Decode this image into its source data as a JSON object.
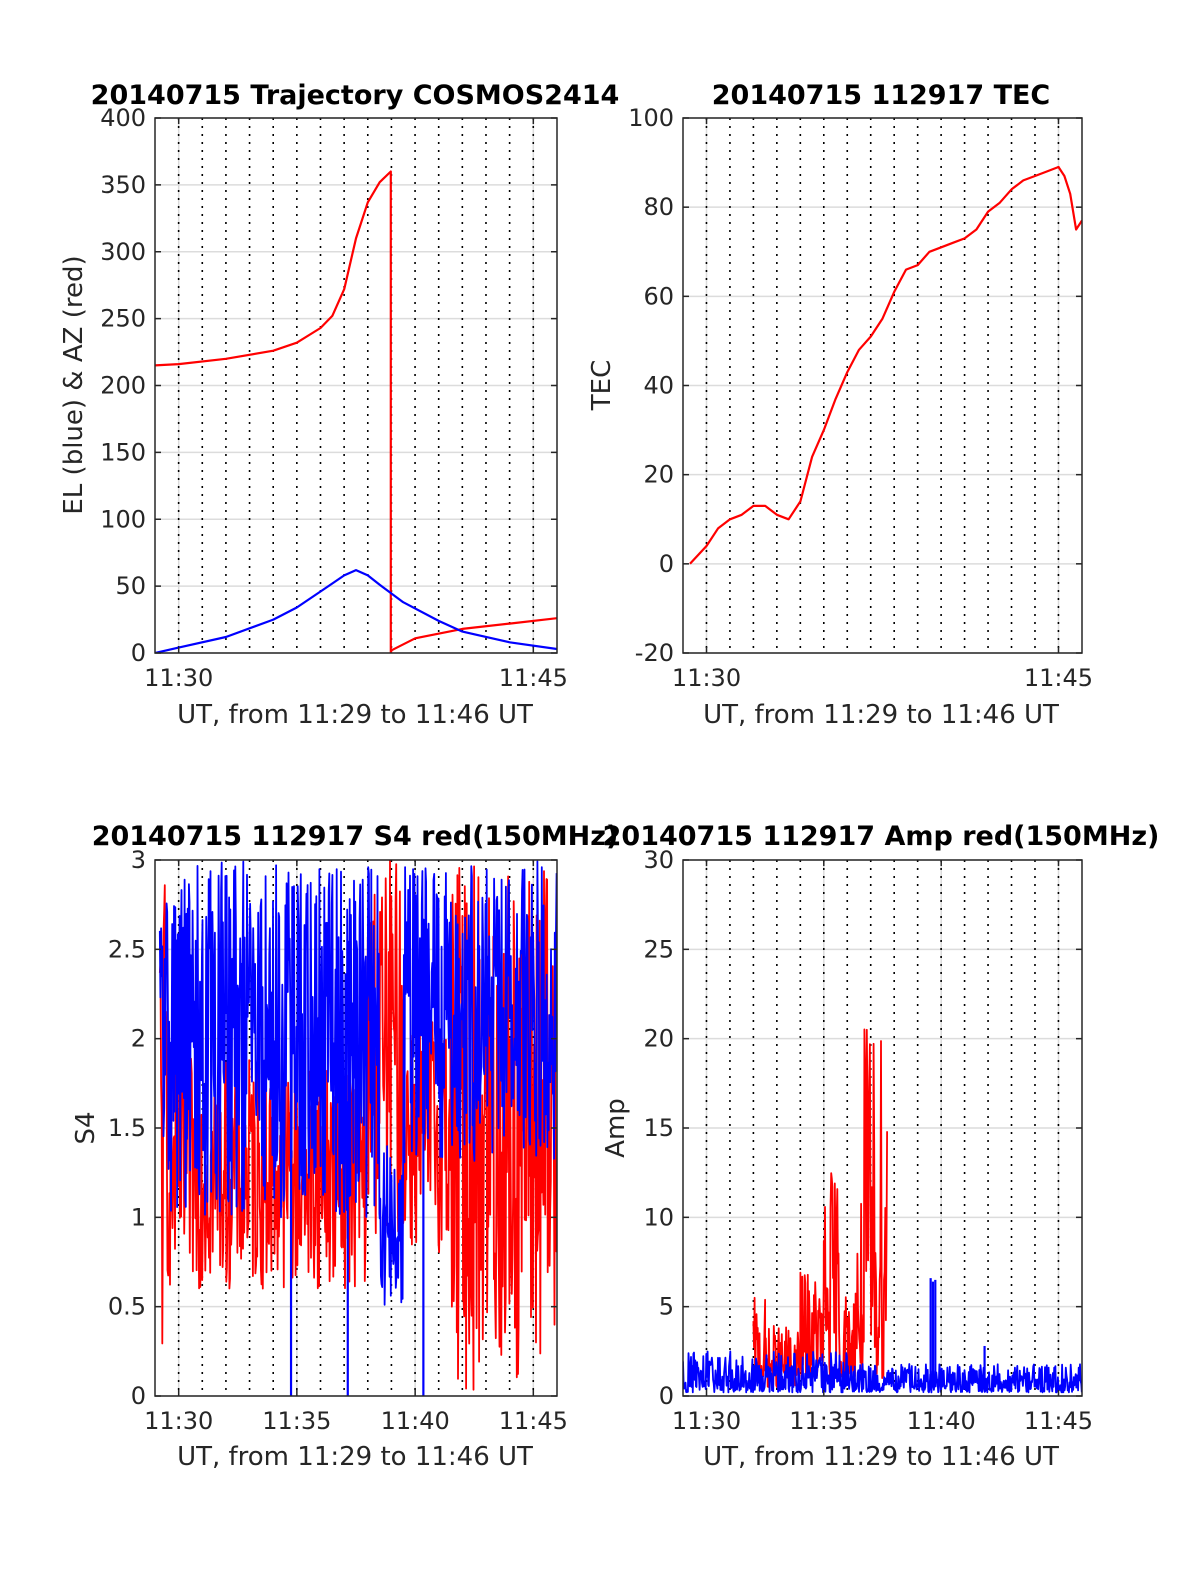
{
  "chart_data": [
    {
      "id": "traj",
      "type": "line",
      "title": "20140715 Trajectory COSMOS2414",
      "xlabel": "UT, from 11:29 to 11:46 UT",
      "ylabel": "EL (blue) & AZ (red)",
      "xlim": [
        11.4833,
        11.7667
      ],
      "ylim": [
        0,
        400
      ],
      "yticks": [
        0,
        50,
        100,
        150,
        200,
        250,
        300,
        350,
        400
      ],
      "xticks": [
        {
          "x": 11.5,
          "label": "11:30"
        },
        {
          "x": 11.75,
          "label": "11:45"
        }
      ],
      "minor_x_every_min": 1,
      "series": [
        {
          "color": "#ff0000",
          "x": [
            11.4833,
            11.5,
            11.5333,
            11.5667,
            11.5833,
            11.6,
            11.6083,
            11.6167,
            11.625,
            11.6333,
            11.6417,
            11.6495,
            11.6495,
            11.65,
            11.6667,
            11.7,
            11.7333,
            11.7667
          ],
          "y": [
            215,
            216,
            220,
            226,
            232,
            243,
            252,
            272,
            310,
            337,
            352,
            360,
            0,
            2,
            11,
            18,
            22,
            26
          ]
        },
        {
          "color": "#0000ff",
          "x": [
            11.4833,
            11.5,
            11.5333,
            11.5667,
            11.5833,
            11.6,
            11.6083,
            11.6167,
            11.625,
            11.6333,
            11.6417,
            11.6583,
            11.6833,
            11.7,
            11.7333,
            11.7667
          ],
          "y": [
            0,
            4,
            12,
            25,
            34,
            46,
            52,
            58,
            62,
            58,
            51,
            38,
            24,
            16,
            8,
            3
          ]
        }
      ]
    },
    {
      "id": "tec",
      "type": "line",
      "title": "20140715 112917 TEC",
      "xlabel": "UT, from 11:29 to 11:46 UT",
      "ylabel": "TEC",
      "xlim": [
        11.4833,
        11.7667
      ],
      "ylim": [
        -20,
        100
      ],
      "yticks": [
        -20,
        0,
        20,
        40,
        60,
        80,
        100
      ],
      "xticks": [
        {
          "x": 11.5,
          "label": "11:30"
        },
        {
          "x": 11.75,
          "label": "11:45"
        }
      ],
      "minor_x_every_min": 1,
      "series": [
        {
          "color": "#ff0000",
          "x": [
            11.4883,
            11.5,
            11.5083,
            11.5167,
            11.525,
            11.5333,
            11.5417,
            11.55,
            11.5583,
            11.5667,
            11.575,
            11.5833,
            11.5917,
            11.6,
            11.6083,
            11.6167,
            11.625,
            11.6333,
            11.6417,
            11.65,
            11.6583,
            11.6667,
            11.675,
            11.6833,
            11.6917,
            11.7,
            11.7083,
            11.7167,
            11.725,
            11.7333,
            11.7417,
            11.75,
            11.7542,
            11.7583,
            11.7625,
            11.7667
          ],
          "y": [
            0,
            4,
            8,
            10,
            11,
            13,
            13,
            11,
            10,
            14,
            24,
            30,
            37,
            43,
            48,
            51,
            55,
            61,
            66,
            67,
            70,
            71,
            72,
            73,
            75,
            79,
            81,
            84,
            86,
            87,
            88,
            89,
            87,
            83,
            75,
            77
          ]
        }
      ]
    },
    {
      "id": "s4",
      "type": "line",
      "title": "20140715 112917 S4 red(150MHz)",
      "xlabel": "UT, from 11:29 to 11:46 UT",
      "ylabel": "S4",
      "xlim": [
        11.4833,
        11.7667
      ],
      "ylim": [
        0,
        3
      ],
      "yticks": [
        0,
        0.5,
        1,
        1.5,
        2,
        2.5,
        3
      ],
      "xticks": [
        {
          "x": 11.5,
          "label": "11:30"
        },
        {
          "x": 11.5833,
          "label": "11:35"
        },
        {
          "x": 11.6667,
          "label": "11:40"
        },
        {
          "x": 11.75,
          "label": "11:45"
        }
      ],
      "minor_x_every_min": 1,
      "noise_series": [
        {
          "color": "#ff0000",
          "segments": [
            {
              "x0": 11.4867,
              "x1": 11.4917,
              "lo": 0,
              "hi": 3
            },
            {
              "x0": 11.4917,
              "x1": 11.6333,
              "lo": 0.6,
              "hi": 1.9
            },
            {
              "x0": 11.6333,
              "x1": 11.6583,
              "lo": 0.9,
              "hi": 3
            },
            {
              "x0": 11.6583,
              "x1": 11.6917,
              "lo": 0.8,
              "hi": 2.2
            },
            {
              "x0": 11.6917,
              "x1": 11.7667,
              "lo": 0,
              "hi": 3
            }
          ]
        },
        {
          "color": "#0000ff",
          "segments": [
            {
              "x0": 11.4867,
              "x1": 11.6417,
              "lo": 1.0,
              "hi": 3
            },
            {
              "x0": 11.6417,
              "x1": 11.6583,
              "lo": 0.5,
              "hi": 1.4
            },
            {
              "x0": 11.6583,
              "x1": 11.7667,
              "lo": 1.3,
              "hi": 3
            }
          ]
        }
      ],
      "spikes": [
        {
          "color": "#0000ff",
          "x": 11.5792,
          "y": 0
        },
        {
          "color": "#0000ff",
          "x": 11.6192,
          "y": 0
        },
        {
          "color": "#0000ff",
          "x": 11.6725,
          "y": 0
        }
      ]
    },
    {
      "id": "amp",
      "type": "line",
      "title": "20140715 112917 Amp red(150MHz)",
      "xlabel": "UT, from 11:29 to 11:46 UT",
      "ylabel": "Amp",
      "xlim": [
        11.4833,
        11.7667
      ],
      "ylim": [
        0,
        30
      ],
      "yticks": [
        0,
        5,
        10,
        15,
        20,
        25,
        30
      ],
      "xticks": [
        {
          "x": 11.5,
          "label": "11:30"
        },
        {
          "x": 11.5833,
          "label": "11:35"
        },
        {
          "x": 11.6667,
          "label": "11:40"
        },
        {
          "x": 11.75,
          "label": "11:45"
        }
      ],
      "minor_x_every_min": 1,
      "noise_series": [
        {
          "color": "#ff0000",
          "segments": [
            {
              "x0": 11.5333,
              "x1": 11.5417,
              "lo": 0.5,
              "hi": 5.5
            },
            {
              "x0": 11.5417,
              "x1": 11.5667,
              "lo": 0.5,
              "hi": 4
            },
            {
              "x0": 11.5667,
              "x1": 11.5833,
              "lo": 1,
              "hi": 7
            },
            {
              "x0": 11.5833,
              "x1": 11.595,
              "lo": 1,
              "hi": 13
            },
            {
              "x0": 11.595,
              "x1": 11.605,
              "lo": 1,
              "hi": 6
            },
            {
              "x0": 11.605,
              "x1": 11.6117,
              "lo": 1,
              "hi": 11
            },
            {
              "x0": 11.6117,
              "x1": 11.6283,
              "lo": 1,
              "hi": 21
            }
          ]
        },
        {
          "color": "#0000ff",
          "segments": [
            {
              "x0": 11.4833,
              "x1": 11.6,
              "lo": 0.2,
              "hi": 2.5
            },
            {
              "x0": 11.6,
              "x1": 11.7667,
              "lo": 0.2,
              "hi": 1.8
            }
          ]
        }
      ],
      "spikes": [
        {
          "color": "#0000ff",
          "x": 11.6592,
          "y": 6.6
        },
        {
          "color": "#0000ff",
          "x": 11.6608,
          "y": 6.4
        },
        {
          "color": "#0000ff",
          "x": 11.6625,
          "y": 6.5
        },
        {
          "color": "#0000ff",
          "x": 11.6975,
          "y": 2.8
        }
      ]
    }
  ]
}
